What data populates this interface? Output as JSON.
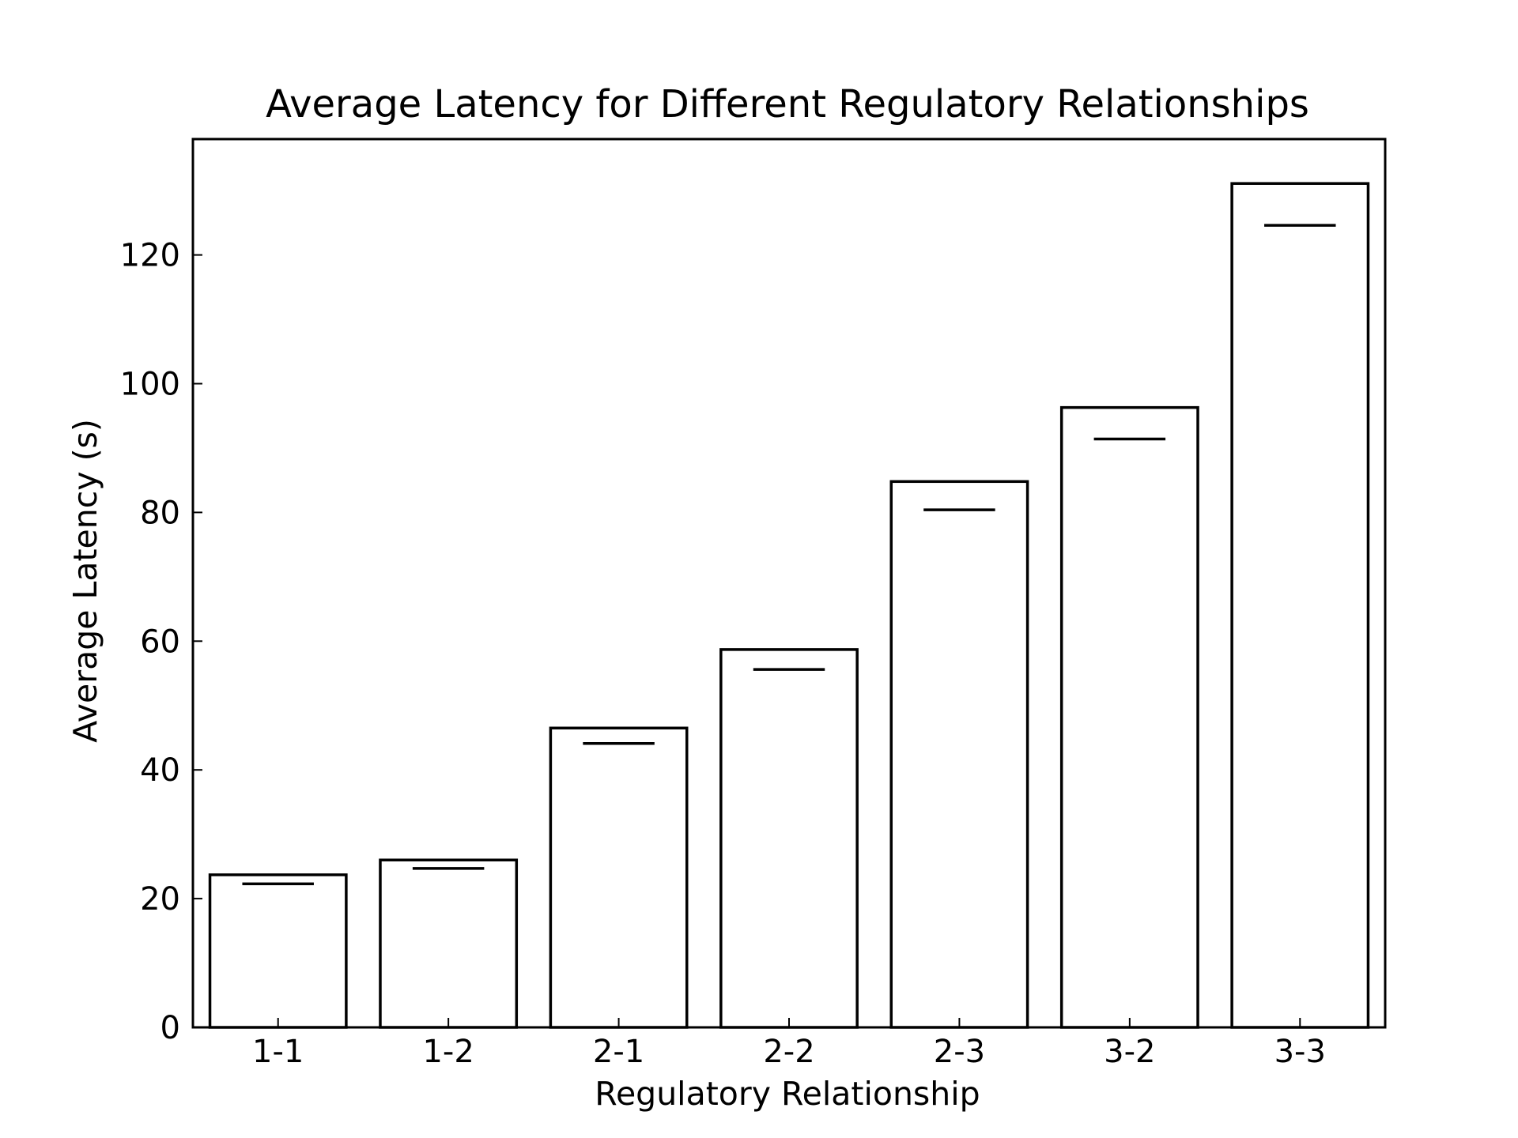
{
  "chart_data": {
    "type": "bar",
    "title": "Average Latency for Different Regulatory Relationships",
    "xlabel": "Regulatory Relationship",
    "ylabel": "Average Latency (s)",
    "categories": [
      "1-1",
      "1-2",
      "2-1",
      "2-2",
      "2-3",
      "3-2",
      "3-3"
    ],
    "series": [
      {
        "values": [
          23.7,
          26.0,
          46.5,
          58.7,
          84.8,
          96.3,
          131.1
        ]
      },
      {
        "values": [
          22.3,
          24.7,
          44.1,
          55.6,
          80.4,
          91.4,
          124.6
        ]
      }
    ],
    "ylim": [
      0,
      138
    ],
    "yticks": [
      0,
      20,
      40,
      60,
      80,
      100,
      120
    ],
    "grid": false,
    "style": {
      "bar_fill": "#ffffff",
      "stroke": "#000000"
    }
  }
}
